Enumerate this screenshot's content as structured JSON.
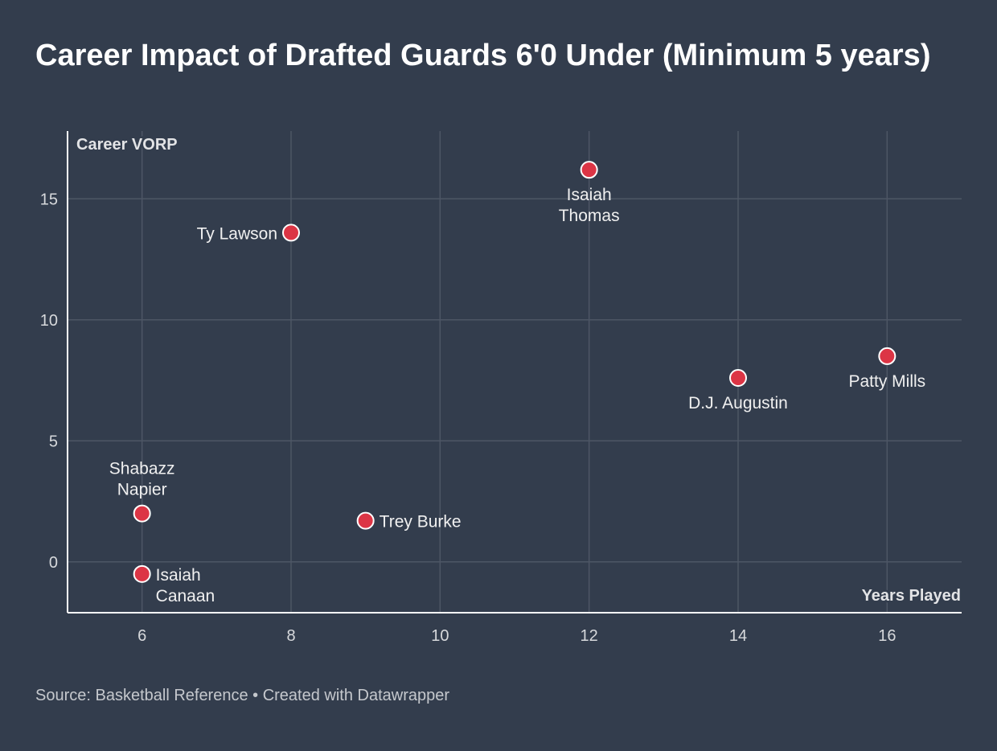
{
  "title": "Career Impact of Drafted Guards 6'0 Under (Minimum 5 years)",
  "source": "Source: Basketball Reference • Created with Datawrapper",
  "colors": {
    "background": "#333d4d",
    "point": "#dc3545",
    "point_stroke": "#ffffff",
    "grid": "#4d5665",
    "axis": "#ffffff"
  },
  "chart_data": {
    "type": "scatter",
    "title": "Career Impact of Drafted Guards 6'0 Under (Minimum 5 years)",
    "xlabel": "Years Played",
    "ylabel": "Career VORP",
    "xlim": [
      5,
      17
    ],
    "ylim": [
      -2.1,
      17.8
    ],
    "xticks": [
      6,
      8,
      10,
      12,
      14,
      16
    ],
    "yticks": [
      0,
      5,
      10,
      15
    ],
    "grid": true,
    "points": [
      {
        "name": "Isaiah Thomas",
        "lines": [
          "Isaiah",
          "Thomas"
        ],
        "x": 12,
        "y": 16.2,
        "label_pos": "below"
      },
      {
        "name": "Ty Lawson",
        "lines": [
          "Ty Lawson"
        ],
        "x": 8,
        "y": 13.6,
        "label_pos": "left"
      },
      {
        "name": "Patty Mills",
        "lines": [
          "Patty Mills"
        ],
        "x": 16,
        "y": 8.5,
        "label_pos": "below"
      },
      {
        "name": "D.J. Augustin",
        "lines": [
          "D.J. Augustin"
        ],
        "x": 14,
        "y": 7.6,
        "label_pos": "below"
      },
      {
        "name": "Shabazz Napier",
        "lines": [
          "Shabazz",
          "Napier"
        ],
        "x": 6,
        "y": 2.0,
        "label_pos": "above"
      },
      {
        "name": "Trey Burke",
        "lines": [
          "Trey Burke"
        ],
        "x": 9,
        "y": 1.7,
        "label_pos": "right"
      },
      {
        "name": "Isaiah Canaan",
        "lines": [
          "Isaiah",
          "Canaan"
        ],
        "x": 6,
        "y": -0.5,
        "label_pos": "right"
      }
    ]
  }
}
